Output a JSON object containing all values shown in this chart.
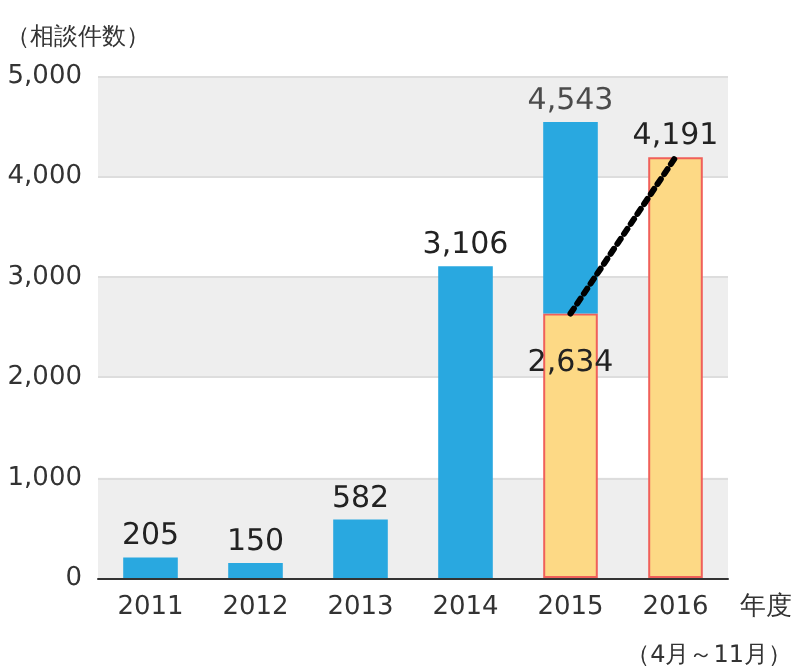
{
  "chart_data": {
    "type": "bar",
    "ylabel": "（相談件数）",
    "xlabel": "年度",
    "annotations": [
      "（4月～11月）"
    ],
    "categories": [
      "2011",
      "2012",
      "2013",
      "2014",
      "2015",
      "2016"
    ],
    "stacked": true,
    "series": [
      {
        "color": "#fdd985",
        "values": [
          null,
          null,
          null,
          null,
          2634,
          4191
        ],
        "value_labels": [
          null,
          null,
          null,
          null,
          "2,634",
          "4,191"
        ]
      },
      {
        "color": "#29a8e0",
        "values": [
          205,
          150,
          582,
          3106,
          1909,
          null
        ],
        "value_labels": [
          "205",
          "150",
          "582",
          "3,106",
          null,
          null
        ]
      },
      {
        "type": "line",
        "color": "#000000",
        "line_style": "dotted",
        "marker": "none",
        "values": [
          null,
          null,
          null,
          null,
          2634,
          4191
        ]
      }
    ],
    "totals": [
      null,
      null,
      null,
      null,
      "4,543",
      null
    ],
    "ylim": [
      0,
      5000
    ],
    "yticks": [
      {
        "value": 0,
        "label": "0"
      },
      {
        "value": 1000,
        "label": "1,000"
      },
      {
        "value": 2000,
        "label": "2,000"
      },
      {
        "value": 3000,
        "label": "3,000"
      },
      {
        "value": 4000,
        "label": "4,000"
      },
      {
        "value": 5000,
        "label": "5,000"
      }
    ],
    "grid": "y"
  }
}
